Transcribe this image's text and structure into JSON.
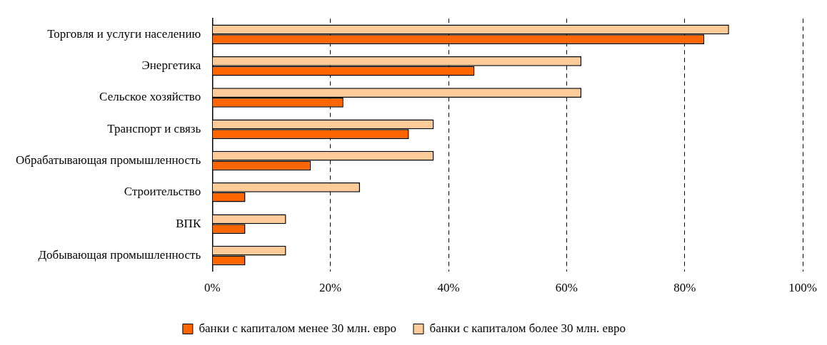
{
  "chart_data": {
    "type": "bar",
    "orientation": "horizontal",
    "categories": [
      "Торговля и услуги населению",
      "Энергетика",
      "Сельское хозяйство",
      "Транспорт и связь",
      "Обрабатывающая промышленность",
      "Строительство",
      "ВПК",
      "Добывающая промышленность"
    ],
    "series": [
      {
        "name": "банки с капиталом более 30 млн. евро",
        "color": "#ffcc99",
        "values": [
          87.5,
          62.5,
          62.5,
          37.5,
          37.5,
          25,
          12.5,
          12.5
        ]
      },
      {
        "name": "банки с капиталом менее 30 млн. евро",
        "color": "#ff6600",
        "values": [
          83.3,
          44.4,
          22.2,
          33.3,
          16.7,
          5.6,
          5.6,
          5.6
        ]
      }
    ],
    "xlim": [
      0,
      100
    ],
    "xticks": [
      {
        "value": 0,
        "label": "0%"
      },
      {
        "value": 20,
        "label": "20%"
      },
      {
        "value": 40,
        "label": "40%"
      },
      {
        "value": 60,
        "label": "60%"
      },
      {
        "value": 80,
        "label": "80%"
      },
      {
        "value": 100,
        "label": "100%"
      }
    ],
    "grid": "x",
    "legend": "bottom"
  }
}
